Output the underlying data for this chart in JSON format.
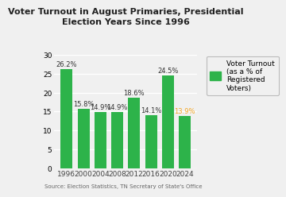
{
  "title": "Voter Turnout in August Primaries, Presidential\nElection Years Since 1996",
  "categories": [
    "1996",
    "2000",
    "2004",
    "2008",
    "2012",
    "2016",
    "2020",
    "2024"
  ],
  "values": [
    26.2,
    15.8,
    14.9,
    14.9,
    18.6,
    14.1,
    24.5,
    13.9
  ],
  "label_colors": [
    "#333333",
    "#333333",
    "#333333",
    "#333333",
    "#333333",
    "#333333",
    "#333333",
    "#f5a623"
  ],
  "labels": [
    "26.2%",
    "15.8%",
    "14.9%",
    "14.9%",
    "18.6%",
    "14.1%",
    "24.5%",
    "13.9%"
  ],
  "green_bar": "#2db34a",
  "ylim": [
    0,
    30
  ],
  "yticks": [
    0,
    5,
    10,
    15,
    20,
    25,
    30
  ],
  "legend_label": "Voter Turnout\n(as a % of\nRegistered\nVoters)",
  "source_text": "Source: Election Statistics, TN Secretary of State's Office",
  "background_color": "#f0f0f0",
  "title_fontsize": 8,
  "label_fontsize": 6,
  "tick_fontsize": 6.5,
  "source_fontsize": 5,
  "legend_fontsize": 6.5
}
